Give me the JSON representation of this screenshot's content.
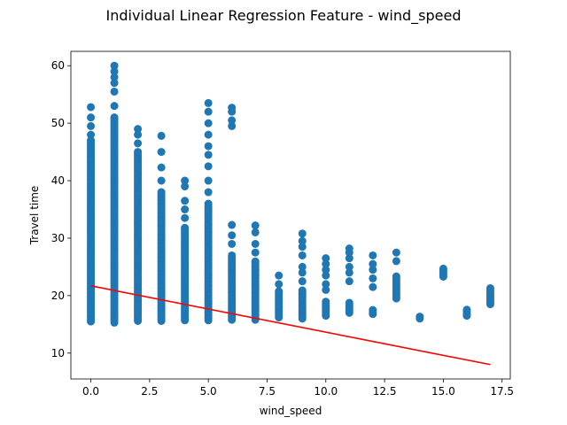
{
  "chart_data": {
    "type": "scatter",
    "title": "Individual Linear Regression Feature - wind_speed",
    "xlabel": "wind_speed",
    "ylabel": "Travel time",
    "xlim": [
      -0.85,
      17.85
    ],
    "ylim": [
      5.5,
      62.5
    ],
    "xticks": [
      0.0,
      2.5,
      5.0,
      7.5,
      10.0,
      12.5,
      15.0,
      17.5
    ],
    "xtick_labels": [
      "0.0",
      "2.5",
      "5.0",
      "7.5",
      "10.0",
      "12.5",
      "15.0",
      "17.5"
    ],
    "yticks": [
      10,
      20,
      30,
      40,
      50,
      60
    ],
    "ytick_labels": [
      "10",
      "20",
      "30",
      "40",
      "50",
      "60"
    ],
    "grid": false,
    "colors": {
      "points": "#1f77b4",
      "regression": "#ff0000"
    },
    "columns": [
      {
        "x": 0,
        "y_min": 15.5,
        "y_max": 47.0,
        "outliers": [
          48.0,
          49.5,
          51.0,
          52.8
        ]
      },
      {
        "x": 1,
        "y_min": 15.3,
        "y_max": 51.0,
        "outliers": [
          53.0,
          55.5,
          57.0,
          58.0,
          59.0,
          60.0
        ]
      },
      {
        "x": 2,
        "y_min": 15.6,
        "y_max": 45.0,
        "outliers": [
          46.5,
          48.0,
          49.0
        ]
      },
      {
        "x": 3,
        "y_min": 15.6,
        "y_max": 38.0,
        "outliers": [
          40.0,
          42.3,
          45.0,
          47.8
        ]
      },
      {
        "x": 4,
        "y_min": 15.7,
        "y_max": 32.0,
        "outliers": [
          33.5,
          35.0,
          36.5,
          39.0,
          40.0
        ]
      },
      {
        "x": 5,
        "y_min": 15.7,
        "y_max": 36.0,
        "outliers": [
          38.0,
          40.0,
          42.5,
          44.5,
          46.0,
          48.0,
          50.0,
          52.0,
          53.5
        ]
      },
      {
        "x": 6,
        "y_min": 15.8,
        "y_max": 27.0,
        "outliers": [
          29.0,
          30.5,
          32.3,
          49.5,
          50.5,
          52.0,
          52.7
        ]
      },
      {
        "x": 7,
        "y_min": 15.8,
        "y_max": 26.0,
        "outliers": [
          27.5,
          29.0,
          31.0,
          32.2
        ]
      },
      {
        "x": 8,
        "y_min": 16.2,
        "y_max": 21.0,
        "outliers": [
          22.0,
          23.5
        ]
      },
      {
        "x": 9,
        "y_min": 16.0,
        "y_max": 21.0,
        "outliers": [
          22.5,
          24.0,
          25.0,
          27.0,
          28.5,
          29.5,
          30.8
        ]
      },
      {
        "x": 10,
        "y_min": 16.5,
        "y_max": 19.0,
        "outliers": [
          21.0,
          22.0,
          23.5,
          24.5,
          25.5,
          26.5
        ]
      },
      {
        "x": 11,
        "y_min": 17.0,
        "y_max": 19.0,
        "outliers": [
          22.5,
          24.0,
          25.0,
          26.5,
          27.5,
          28.2
        ]
      },
      {
        "x": 12,
        "y_min": 16.8,
        "y_max": 17.5,
        "outliers": [
          21.5,
          23.0,
          24.5,
          25.5,
          27.0
        ]
      },
      {
        "x": 13,
        "y_min": 19.5,
        "y_max": 23.5,
        "outliers": [
          26.0,
          27.5
        ]
      },
      {
        "x": 14,
        "y_min": 16.0,
        "y_max": 16.5,
        "outliers": []
      },
      {
        "x": 15,
        "y_min": 23.3,
        "y_max": 25.0,
        "outliers": []
      },
      {
        "x": 16,
        "y_min": 16.5,
        "y_max": 17.6,
        "outliers": []
      },
      {
        "x": 17,
        "y_min": 18.5,
        "y_max": 21.3,
        "outliers": []
      }
    ],
    "regression_line": {
      "x": [
        0,
        17
      ],
      "y": [
        21.7,
        8.0
      ]
    }
  }
}
